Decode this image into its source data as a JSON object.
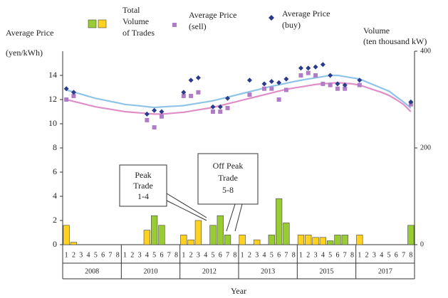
{
  "chart_data": {
    "type": "combo",
    "y_label": [
      "Average Price",
      "(yen/kWh)"
    ],
    "y2_label": [
      "Volume",
      "(ten thousand kW)"
    ],
    "x_label": "Year",
    "categories": [
      "1",
      "2",
      "3",
      "4",
      "5",
      "6",
      "7",
      "8",
      "1",
      "2",
      "3",
      "4",
      "5",
      "6",
      "7",
      "8",
      "1",
      "2",
      "3",
      "4",
      "5",
      "6",
      "7",
      "8",
      "1",
      "2",
      "3",
      "4",
      "5",
      "6",
      "7",
      "8",
      "1",
      "2",
      "3",
      "4",
      "5",
      "6",
      "7",
      "8",
      "1",
      "2",
      "3",
      "4",
      "5",
      "6",
      "7",
      "8"
    ],
    "groups": [
      "2008",
      "2010",
      "2012",
      "2013",
      "2015",
      "2017"
    ],
    "ylim": [
      0,
      16
    ],
    "yticks": [
      0,
      2,
      4,
      6,
      8,
      10,
      12,
      14
    ],
    "y2lim": [
      0,
      400
    ],
    "y2ticks": [
      0,
      200,
      400
    ],
    "series": [
      {
        "name": [
          "Total",
          "Volume",
          "of Trades"
        ],
        "type": "bar",
        "axis": "y2",
        "legend_colors": [
          "#99cc33",
          "#ffd21f"
        ],
        "colors": [
          "#ffd21f",
          "#ffd21f",
          "#ffd21f",
          "#ffd21f",
          "#99cc33",
          "#99cc33",
          "#99cc33",
          "#99cc33",
          "#ffd21f",
          "#ffd21f",
          "#ffd21f",
          "#ffd21f",
          "#99cc33",
          "#99cc33",
          "#99cc33",
          "#99cc33",
          "#ffd21f",
          "#ffd21f",
          "#ffd21f",
          "#ffd21f",
          "#99cc33",
          "#99cc33",
          "#99cc33",
          "#99cc33",
          "#ffd21f",
          "#ffd21f",
          "#ffd21f",
          "#ffd21f",
          "#99cc33",
          "#99cc33",
          "#99cc33",
          "#99cc33",
          "#ffd21f",
          "#ffd21f",
          "#ffd21f",
          "#ffd21f",
          "#99cc33",
          "#99cc33",
          "#99cc33",
          "#99cc33",
          "#ffd21f",
          "#ffd21f",
          "#ffd21f",
          "#ffd21f",
          "#99cc33",
          "#99cc33",
          "#99cc33",
          "#99cc33"
        ],
        "values": [
          40,
          5,
          0,
          0,
          0,
          0,
          0,
          0,
          0,
          0,
          0,
          30,
          60,
          40,
          0,
          0,
          20,
          10,
          50,
          0,
          40,
          60,
          20,
          0,
          20,
          0,
          10,
          0,
          20,
          95,
          45,
          0,
          20,
          20,
          15,
          15,
          8,
          20,
          20,
          0,
          20,
          0,
          0,
          0,
          0,
          0,
          0,
          40
        ]
      },
      {
        "name": [
          "Average Price",
          "(sell)"
        ],
        "type": "scatter",
        "marker": "square",
        "color": "#b07cc6",
        "values": [
          12.0,
          12.3,
          null,
          null,
          null,
          null,
          null,
          null,
          null,
          null,
          null,
          10.3,
          9.7,
          10.6,
          null,
          null,
          12.3,
          12.3,
          12.6,
          null,
          11.0,
          11.0,
          11.3,
          null,
          null,
          12.4,
          null,
          12.9,
          12.9,
          12.0,
          12.8,
          null,
          14.0,
          14.2,
          14.0,
          13.3,
          13.2,
          12.9,
          12.9,
          null,
          13.2,
          null,
          null,
          null,
          null,
          null,
          null,
          11.6
        ]
      },
      {
        "name": [
          "Average Price",
          "(buy)"
        ],
        "type": "scatter",
        "marker": "diamond",
        "color": "#2a3a8c",
        "values": [
          12.9,
          12.6,
          null,
          null,
          null,
          null,
          null,
          null,
          null,
          null,
          null,
          10.8,
          11.1,
          11.0,
          null,
          null,
          12.6,
          13.6,
          13.8,
          null,
          11.4,
          11.4,
          12.1,
          null,
          null,
          13.6,
          null,
          13.3,
          13.5,
          13.4,
          13.7,
          null,
          14.6,
          14.6,
          14.7,
          14.9,
          14.0,
          13.3,
          13.2,
          null,
          13.6,
          null,
          null,
          null,
          null,
          null,
          null,
          11.8
        ]
      }
    ],
    "trend_lines": [
      {
        "color": "#8ec4e8",
        "values": [
          12.8,
          12.62,
          12.45,
          12.27,
          12.1,
          11.98,
          11.85,
          11.73,
          11.6,
          11.54,
          11.48,
          11.41,
          11.35,
          11.39,
          11.43,
          11.46,
          11.5,
          11.6,
          11.7,
          11.8,
          11.9,
          12.05,
          12.2,
          12.35,
          12.5,
          12.65,
          12.8,
          12.95,
          13.1,
          13.22,
          13.35,
          13.48,
          13.6,
          13.7,
          13.8,
          13.9,
          14.0,
          14.0,
          13.9,
          13.8,
          13.7,
          13.45,
          13.2,
          12.95,
          12.7,
          12.25,
          11.8,
          11.3
        ]
      },
      {
        "color": "#e08ec8",
        "values": [
          12.0,
          11.85,
          11.7,
          11.55,
          11.4,
          11.3,
          11.2,
          11.1,
          11.0,
          10.95,
          10.9,
          10.85,
          10.8,
          10.8,
          10.85,
          10.9,
          10.95,
          11.05,
          11.15,
          11.25,
          11.35,
          11.5,
          11.65,
          11.8,
          11.95,
          12.1,
          12.25,
          12.4,
          12.55,
          12.7,
          12.85,
          12.95,
          13.05,
          13.15,
          13.25,
          13.3,
          13.35,
          13.4,
          13.35,
          13.3,
          13.2,
          13.0,
          12.8,
          12.6,
          12.35,
          12.0,
          11.6,
          11.0
        ]
      }
    ],
    "annotations": [
      {
        "lines": [
          "Peak",
          "Trade",
          "1-4"
        ]
      },
      {
        "lines": [
          "Off Peak",
          "Trade",
          "5-8"
        ]
      }
    ]
  }
}
